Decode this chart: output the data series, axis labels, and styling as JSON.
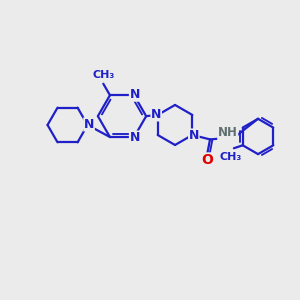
{
  "background_color": "#ebebeb",
  "bond_color": "#2020c8",
  "oxygen_color": "#e00000",
  "nh_color": "#607070",
  "line_width": 1.6,
  "font_size": 8.5,
  "fig_size": [
    3.0,
    3.0
  ],
  "dpi": 100,
  "xlim": [
    0,
    10
  ],
  "ylim": [
    0,
    10
  ]
}
